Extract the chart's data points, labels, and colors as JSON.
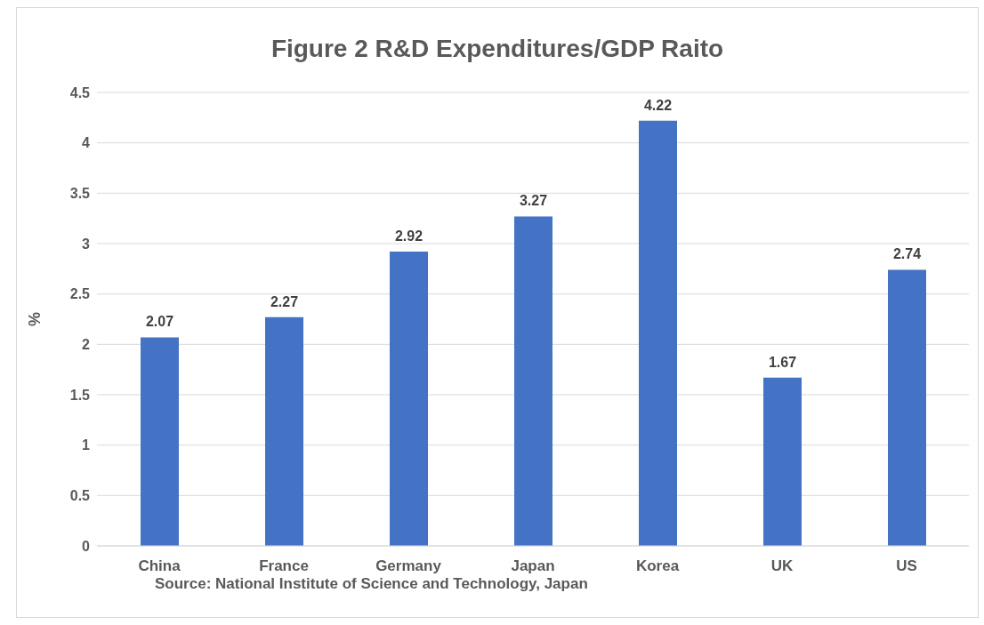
{
  "chart_data": {
    "type": "bar",
    "title": "Figure 2 R&D Expenditures/GDP Raito",
    "ylabel": "%",
    "categories": [
      "China",
      "France",
      "Germany",
      "Japan",
      "Korea",
      "UK",
      "US"
    ],
    "values": [
      2.07,
      2.27,
      2.92,
      3.27,
      4.22,
      1.67,
      2.74
    ],
    "color": "#4472c4",
    "ylim": [
      0,
      4.5
    ],
    "yticks": [
      0,
      0.5,
      1,
      1.5,
      2,
      2.5,
      3,
      3.5,
      4,
      4.5
    ],
    "grid": "y",
    "data_labels": true,
    "annotations": [
      "Source: National Institute of Science and Technology, Japan"
    ]
  }
}
